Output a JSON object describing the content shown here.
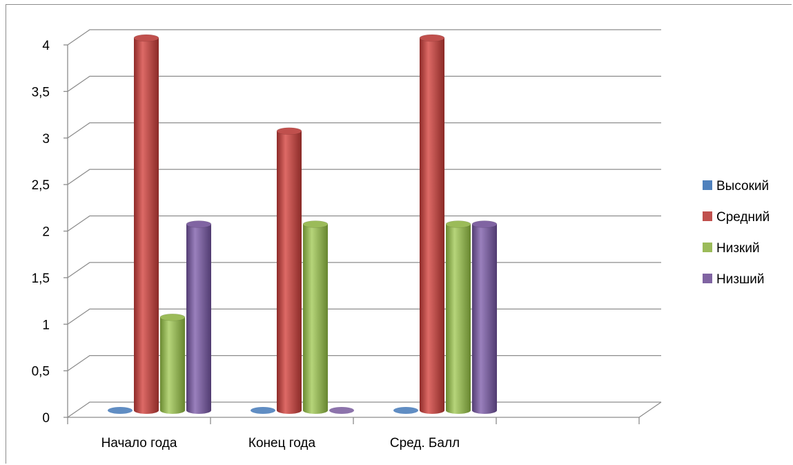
{
  "chart_data": {
    "type": "bar",
    "style": "3d-cylinder",
    "categories": [
      "Начало года",
      "Конец года",
      "Сред. Балл"
    ],
    "series": [
      {
        "name": "Высокий",
        "values": [
          0,
          0,
          0
        ],
        "color": "#4F81BD"
      },
      {
        "name": "Средний",
        "values": [
          4,
          3,
          4
        ],
        "color": "#C0504D"
      },
      {
        "name": "Низкий",
        "values": [
          1,
          2,
          2
        ],
        "color": "#9BBB59"
      },
      {
        "name": "Низший",
        "values": [
          2,
          0,
          2
        ],
        "color": "#8064A2"
      }
    ],
    "yticks": [
      "0",
      "0,5",
      "1",
      "1,5",
      "2",
      "2,5",
      "3",
      "3,5",
      "4"
    ],
    "ylim": [
      0,
      4
    ],
    "grid": true,
    "legend": "right"
  }
}
